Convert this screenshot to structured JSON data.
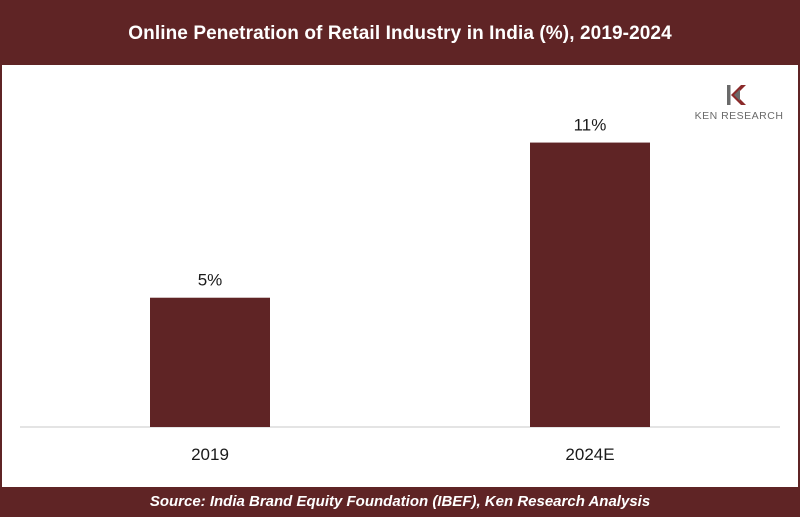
{
  "title": "Online Penetration of Retail Industry in India (%), 2019-2024",
  "source": "Source: India Brand Equity Foundation (IBEF), Ken Research Analysis",
  "logo": {
    "text": "KEN RESEARCH"
  },
  "colors": {
    "brand": "#5f2425",
    "bar": "#5f2425"
  },
  "chart_data": {
    "type": "bar",
    "categories": [
      "2019",
      "2024E"
    ],
    "values": [
      5,
      11
    ],
    "value_labels": [
      "5%",
      "11%"
    ],
    "ylim": [
      0,
      14
    ],
    "grid": false
  }
}
